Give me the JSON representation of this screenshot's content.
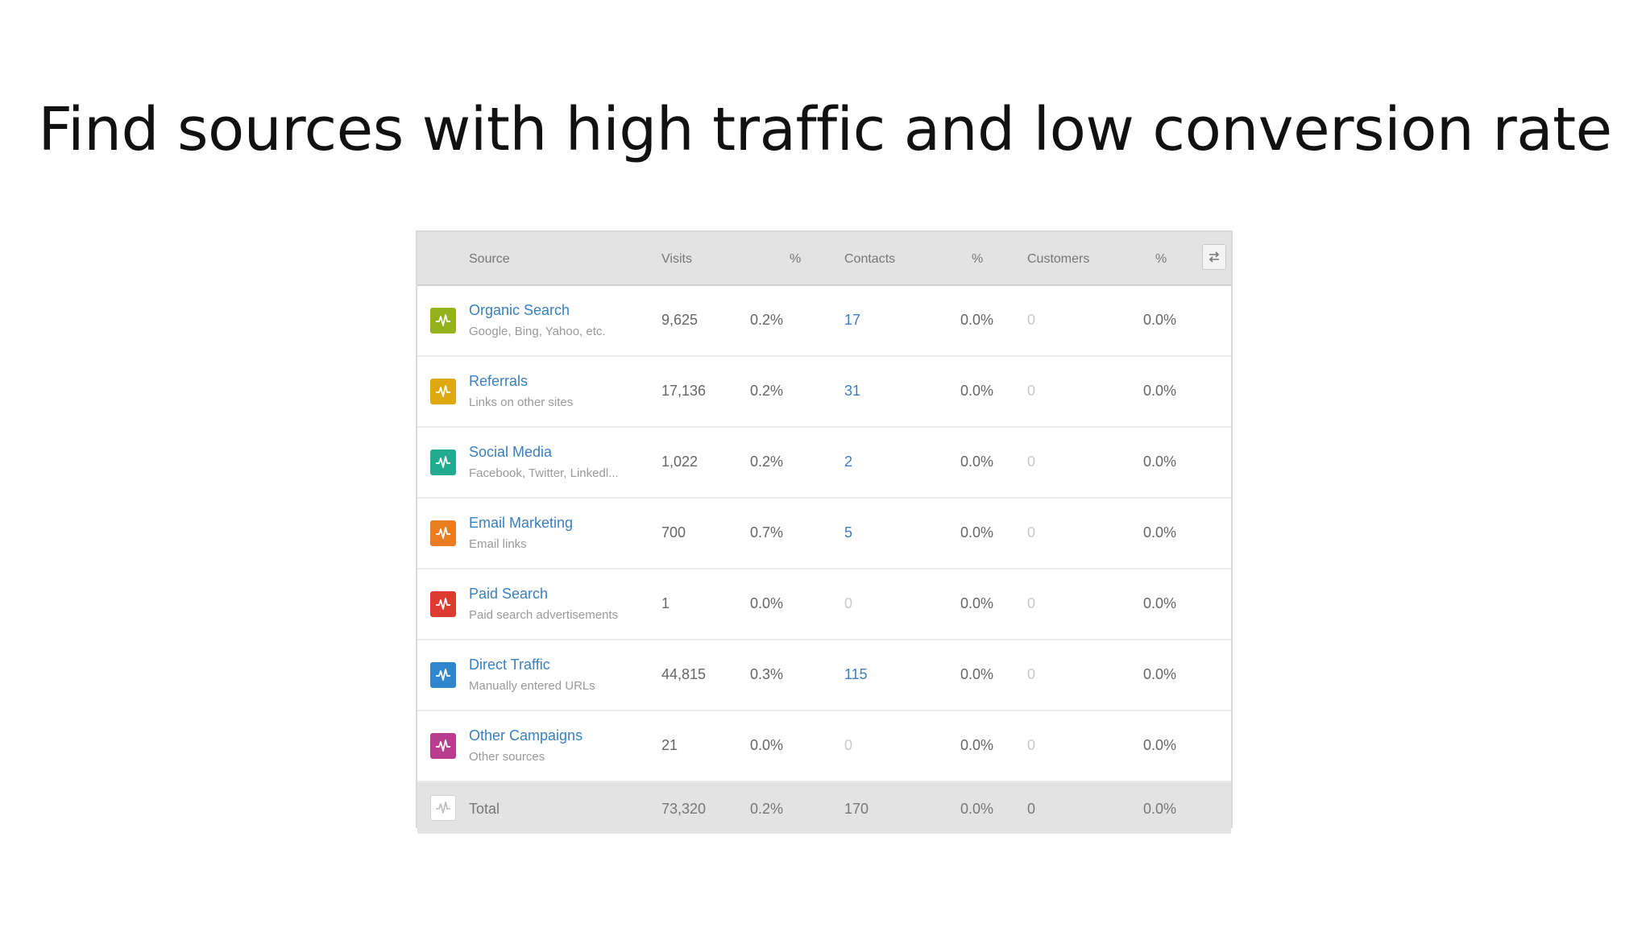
{
  "slide": {
    "title": "Find sources with high traffic and low conversion rate"
  },
  "table": {
    "headers": {
      "source": "Source",
      "visits": "Visits",
      "visits_pct": "%",
      "contacts": "Contacts",
      "contacts_pct": "%",
      "customers": "Customers",
      "customers_pct": "%"
    },
    "rows": [
      {
        "name": "Organic Search",
        "desc": "Google, Bing, Yahoo, etc.",
        "visits": "9,625",
        "visits_pct": "0.2%",
        "contacts": "17",
        "contacts_pct": "0.0%",
        "customers": "0",
        "customers_pct": "0.0%",
        "color": "#94b21b"
      },
      {
        "name": "Referrals",
        "desc": "Links on other sites",
        "visits": "17,136",
        "visits_pct": "0.2%",
        "contacts": "31",
        "contacts_pct": "0.0%",
        "customers": "0",
        "customers_pct": "0.0%",
        "color": "#e0a80f"
      },
      {
        "name": "Social Media",
        "desc": "Facebook, Twitter, Linkedl...",
        "visits": "1,022",
        "visits_pct": "0.2%",
        "contacts": "2",
        "contacts_pct": "0.0%",
        "customers": "0",
        "customers_pct": "0.0%",
        "color": "#22ab8e"
      },
      {
        "name": "Email Marketing",
        "desc": "Email links",
        "visits": "700",
        "visits_pct": "0.7%",
        "contacts": "5",
        "contacts_pct": "0.0%",
        "customers": "0",
        "customers_pct": "0.0%",
        "color": "#ea7c22"
      },
      {
        "name": "Paid Search",
        "desc": "Paid search advertisements",
        "visits": "1",
        "visits_pct": "0.0%",
        "contacts": "0",
        "contacts_pct": "0.0%",
        "customers": "0",
        "customers_pct": "0.0%",
        "color": "#dd3b2f"
      },
      {
        "name": "Direct Traffic",
        "desc": "Manually entered URLs",
        "visits": "44,815",
        "visits_pct": "0.3%",
        "contacts": "115",
        "contacts_pct": "0.0%",
        "customers": "0",
        "customers_pct": "0.0%",
        "color": "#2f86cc"
      },
      {
        "name": "Other Campaigns",
        "desc": "Other sources",
        "visits": "21",
        "visits_pct": "0.0%",
        "contacts": "0",
        "contacts_pct": "0.0%",
        "customers": "0",
        "customers_pct": "0.0%",
        "color": "#b93d8e"
      }
    ],
    "total": {
      "name": "Total",
      "visits": "73,320",
      "visits_pct": "0.2%",
      "contacts": "170",
      "contacts_pct": "0.0%",
      "customers": "0",
      "customers_pct": "0.0%"
    },
    "icons": {
      "source": "activity-icon",
      "swap": "swap-arrows-icon"
    },
    "colors": {
      "link": "#3a7fc1",
      "zero_value": "#c9c9c9",
      "header_bg": "#e3e3e3"
    }
  }
}
